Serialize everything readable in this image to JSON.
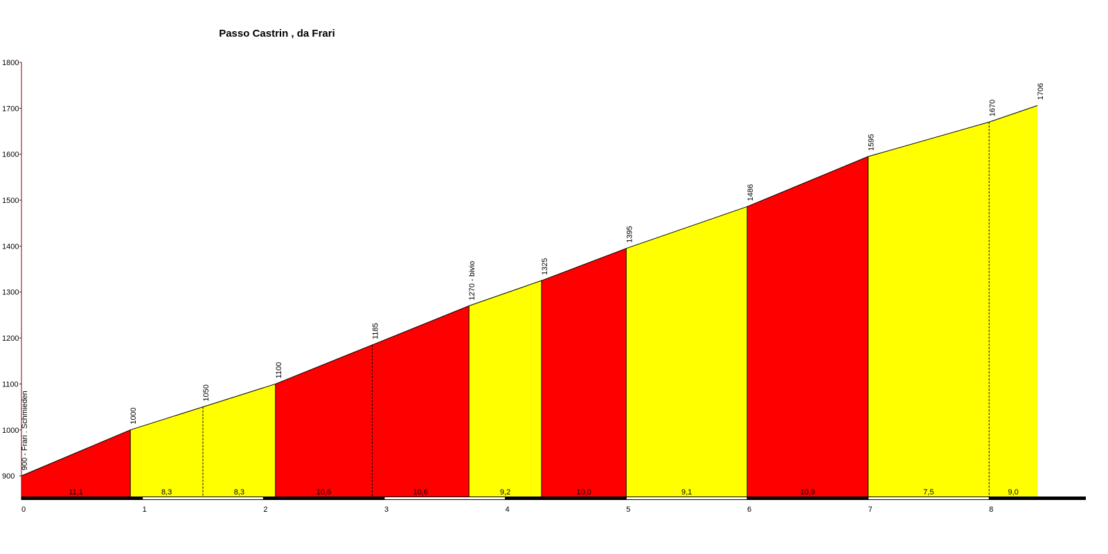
{
  "chart_data": {
    "type": "profile",
    "title": "Passo Castrin , da Frari",
    "x": [
      0,
      0.9,
      1.5,
      2.1,
      2.9,
      3.7,
      4.3,
      5.0,
      6.0,
      7.0,
      8.0,
      8.4
    ],
    "values": [
      900,
      1000,
      1050,
      1100,
      1185,
      1270,
      1325,
      1395,
      1486,
      1595,
      1670,
      1706
    ],
    "value_labels": [
      "900 - Frari . Schmieden",
      "1000",
      "1050",
      "1100",
      "1185",
      "1270 - bivio",
      "1325",
      "1395",
      "1486",
      "1595",
      "1670",
      "1706"
    ],
    "gradients": [
      11.1,
      8.3,
      8.3,
      10.6,
      10.6,
      9.2,
      10.0,
      9.1,
      10.9,
      7.5,
      9.0
    ],
    "gradient_labels": [
      "11,1",
      "8,3",
      "8,3",
      "10,6",
      "10,6",
      "9,2",
      "10,0",
      "9,1",
      "10,9",
      "7,5",
      "9,0"
    ],
    "segment_colors": [
      "#ff0000",
      "#ffff00",
      "#ffff00",
      "#ff0000",
      "#ff0000",
      "#ffff00",
      "#ff0000",
      "#ffff00",
      "#ff0000",
      "#ffff00",
      "#ffff00"
    ],
    "xlim": [
      0,
      8.8
    ],
    "xticks": [
      0,
      1,
      2,
      3,
      4,
      5,
      6,
      7,
      8
    ],
    "ylim": [
      855,
      1800
    ],
    "yticks": [
      900,
      1000,
      1100,
      1200,
      1300,
      1400,
      1500,
      1600,
      1700,
      1800
    ]
  }
}
